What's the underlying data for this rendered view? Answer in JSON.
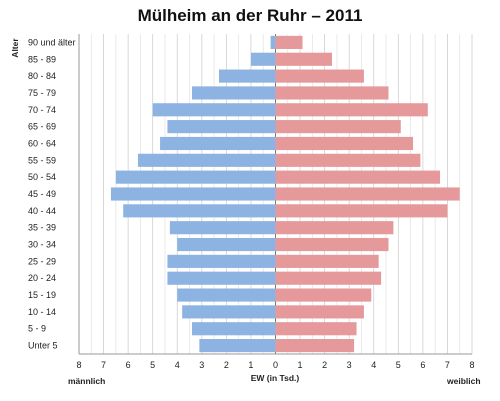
{
  "chart_data": {
    "type": "bar",
    "orientation": "horizontal-population-pyramid",
    "title": "Mülheim an der Ruhr – 2011",
    "ylabel": "Alter",
    "xlabel": "EW (in Tsd.)",
    "left_label": "männlich",
    "right_label": "weiblich",
    "categories": [
      "90 und älter",
      "85 - 89",
      "80 - 84",
      "75 - 79",
      "70 - 74",
      "65 - 69",
      "60 - 64",
      "55 - 59",
      "50 - 54",
      "45 - 49",
      "40 - 44",
      "35 - 39",
      "30 - 34",
      "25 - 29",
      "20 - 24",
      "15 - 19",
      "10 - 14",
      "5 - 9",
      "Unter 5"
    ],
    "series": [
      {
        "name": "männlich",
        "color": "#8db3e2",
        "values": [
          0.2,
          1.0,
          2.3,
          3.4,
          5.0,
          4.4,
          4.7,
          5.6,
          6.5,
          6.7,
          6.2,
          4.3,
          4.0,
          4.4,
          4.4,
          4.0,
          3.8,
          3.4,
          3.1
        ]
      },
      {
        "name": "weiblich",
        "color": "#e6999a",
        "values": [
          1.1,
          2.3,
          3.6,
          4.6,
          6.2,
          5.1,
          5.6,
          5.9,
          6.7,
          7.5,
          7.0,
          4.8,
          4.6,
          4.2,
          4.3,
          3.9,
          3.6,
          3.3,
          3.2
        ]
      }
    ],
    "xlim": [
      -8,
      8
    ],
    "x_ticks": [
      "8",
      "7",
      "6",
      "5",
      "4",
      "3",
      "2",
      "1",
      "0",
      "1",
      "2",
      "3",
      "4",
      "5",
      "6",
      "7",
      "8"
    ],
    "grid": true
  }
}
